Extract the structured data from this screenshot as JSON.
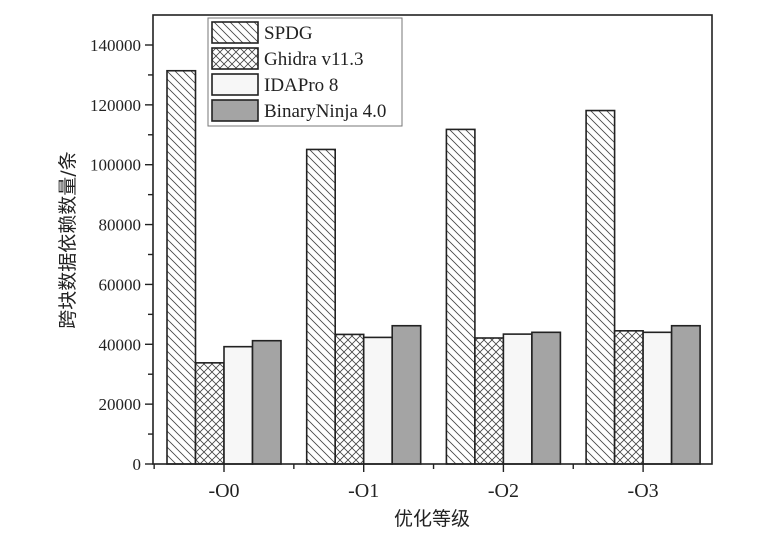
{
  "chart_data": {
    "type": "bar",
    "title": "",
    "xlabel": "优化等级",
    "ylabel": "跨块数据依赖数量/条",
    "categories": [
      "-O0",
      "-O1",
      "-O2",
      "-O3"
    ],
    "ylim": [
      0,
      150000
    ],
    "yticks": [
      0,
      20000,
      40000,
      60000,
      80000,
      100000,
      120000,
      140000
    ],
    "ytick_labels": [
      "0",
      "20000",
      "40000",
      "60000",
      "80000",
      "100000",
      "120000",
      "140000"
    ],
    "grid": false,
    "legend_position": "top-left",
    "series": [
      {
        "name": "SPDG",
        "pattern": "diagonal-hatch",
        "color": "#ffffff",
        "values": [
          131400,
          105100,
          111800,
          118100
        ]
      },
      {
        "name": "Ghidra v11.3",
        "pattern": "cross-hatch",
        "color": "#ffffff",
        "values": [
          33800,
          43300,
          42100,
          44500
        ]
      },
      {
        "name": "IDAPro 8",
        "pattern": "solid",
        "color": "#f7f7f7",
        "values": [
          39200,
          42300,
          43400,
          44000
        ]
      },
      {
        "name": "BinaryNinja 4.0",
        "pattern": "solid",
        "color": "#a4a4a4",
        "values": [
          41200,
          46200,
          44000,
          46200
        ]
      }
    ]
  }
}
